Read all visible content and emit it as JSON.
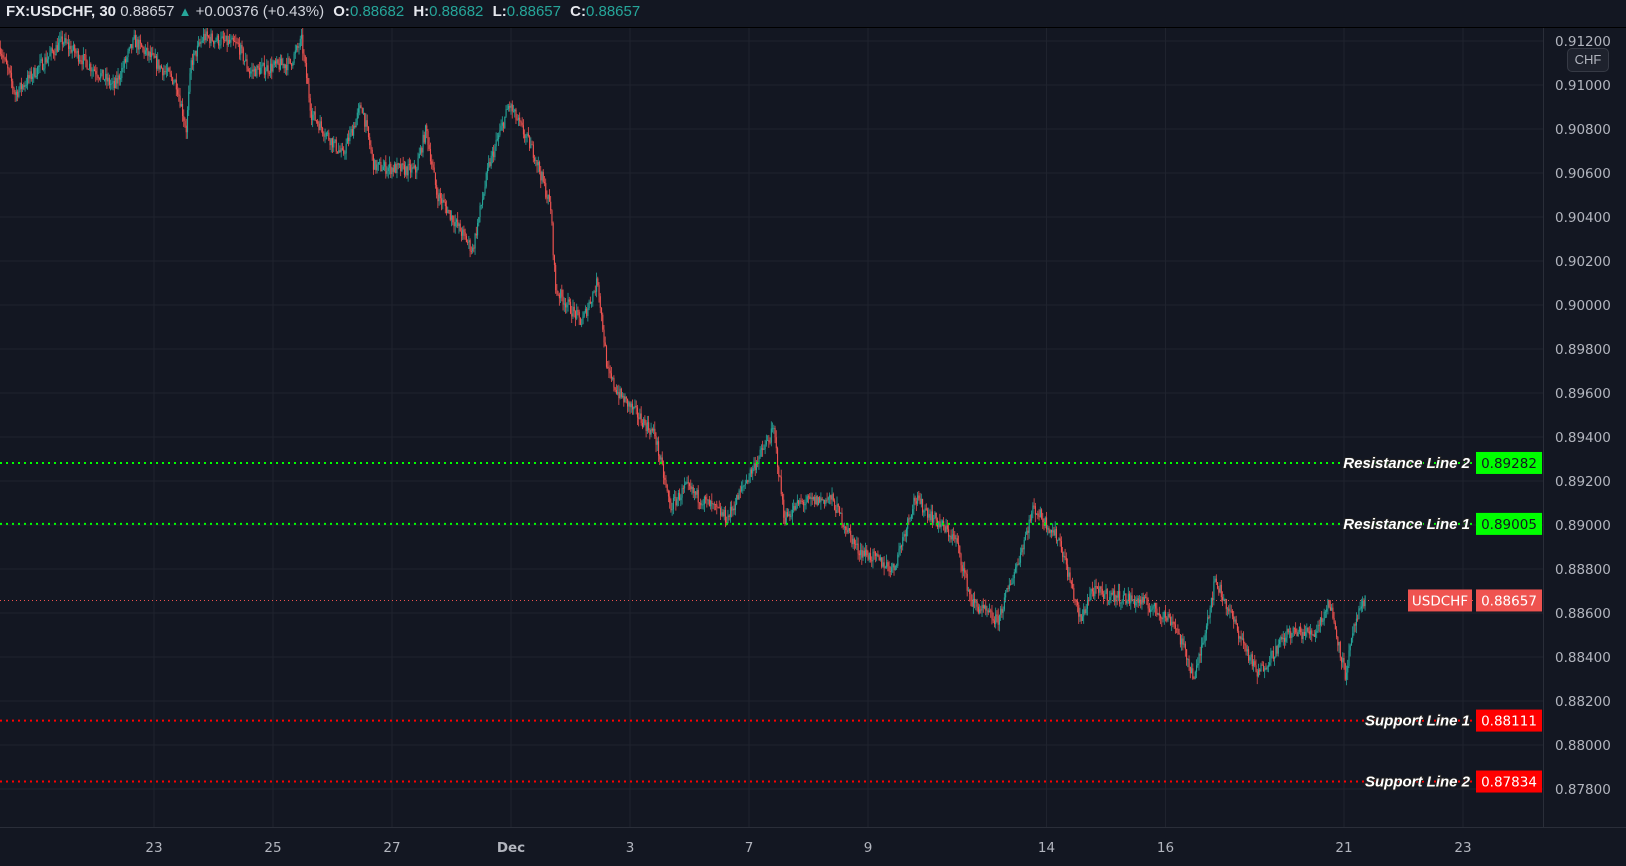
{
  "header": {
    "symbol": "FX:USDCHF, 30",
    "last": "0.88657",
    "change": "+0.00376 (+0.43%)",
    "change_icon": "triangle-up-icon",
    "o_label": "O:",
    "o": "0.88682",
    "h_label": "H:",
    "h": "0.88682",
    "l_label": "L:",
    "l": "0.88657",
    "c_label": "C:",
    "c": "0.88657"
  },
  "currency_button": "CHF",
  "colors": {
    "background": "#131722",
    "up": "#26a69a",
    "down": "#ef5350",
    "resistance": "#00ff00",
    "support": "#ff0000",
    "last_price": "#ef5350"
  },
  "chart_data": {
    "type": "candlestick",
    "interval": "30",
    "ylim": [
      0.8765,
      0.9132
    ],
    "grid": true,
    "y_ticks": [
      "0.87800",
      "0.88000",
      "0.88200",
      "0.88400",
      "0.88600",
      "0.88800",
      "0.89000",
      "0.89200",
      "0.89400",
      "0.89600",
      "0.89800",
      "0.90000",
      "0.90200",
      "0.90400",
      "0.90600",
      "0.90800",
      "0.91000",
      "0.91200"
    ],
    "x_ticks": [
      {
        "date": "2020-11-23",
        "label": "23"
      },
      {
        "date": "2020-11-25",
        "label": "25"
      },
      {
        "date": "2020-11-27",
        "label": "27"
      },
      {
        "date": "2020-12-01",
        "label": "Dec"
      },
      {
        "date": "2020-12-03",
        "label": "3"
      },
      {
        "date": "2020-12-07",
        "label": "7"
      },
      {
        "date": "2020-12-09",
        "label": "9"
      },
      {
        "date": "2020-12-14",
        "label": "14"
      },
      {
        "date": "2020-12-16",
        "label": "16"
      },
      {
        "date": "2020-12-21",
        "label": "21"
      },
      {
        "date": "2020-12-23",
        "label": "23"
      }
    ],
    "approx_price_path": [
      [
        "2020-11-18 10:00",
        0.9117
      ],
      [
        "2020-11-18 16:00",
        0.9096
      ],
      [
        "2020-11-19 11:00",
        0.912
      ],
      [
        "2020-11-20 08:00",
        0.9099
      ],
      [
        "2020-11-20 16:00",
        0.912
      ],
      [
        "2020-11-23 09:00",
        0.9101
      ],
      [
        "2020-11-23 13:00",
        0.908
      ],
      [
        "2020-11-23 15:00",
        0.911
      ],
      [
        "2020-11-23 20:00",
        0.9122
      ],
      [
        "2020-11-24 10:00",
        0.9118
      ],
      [
        "2020-11-24 14:30",
        0.9106
      ],
      [
        "2020-11-25 07:00",
        0.911
      ],
      [
        "2020-11-25 11:30",
        0.912
      ],
      [
        "2020-11-25 15:30",
        0.9087
      ],
      [
        "2020-11-26 04:00",
        0.9068
      ],
      [
        "2020-11-26 11:45",
        0.9091
      ],
      [
        "2020-11-26 16:45",
        0.9063
      ],
      [
        "2020-11-27 09:30",
        0.9061
      ],
      [
        "2020-11-27 13:45",
        0.908
      ],
      [
        "2020-11-27 18:00",
        0.9051
      ],
      [
        "2020-11-30 08:30",
        0.9025
      ],
      [
        "2020-11-30 15:00",
        0.9063
      ],
      [
        "2020-11-30 23:15",
        0.9091
      ],
      [
        "2020-12-01 09:45",
        0.9068
      ],
      [
        "2020-12-01 16:00",
        0.9044
      ],
      [
        "2020-12-01 18:00",
        0.9007
      ],
      [
        "2020-12-02 04:30",
        0.8992
      ],
      [
        "2020-12-02 11:00",
        0.9011
      ],
      [
        "2020-12-02 15:00",
        0.8969
      ],
      [
        "2020-12-02 19:15",
        0.896
      ],
      [
        "2020-12-03 10:00",
        0.8941
      ],
      [
        "2020-12-03 16:15",
        0.8908
      ],
      [
        "2020-12-03 22:30",
        0.8917
      ],
      [
        "2020-12-04 15:15",
        0.8903
      ],
      [
        "2020-12-04 23:40",
        0.8922
      ],
      [
        "2020-12-07 10:00",
        0.8943
      ],
      [
        "2020-12-07 14:15",
        0.8903
      ],
      [
        "2020-12-07 20:30",
        0.891
      ],
      [
        "2020-12-08 09:10",
        0.8912
      ],
      [
        "2020-12-08 19:40",
        0.8889
      ],
      [
        "2020-12-09 10:20",
        0.888
      ],
      [
        "2020-12-09 18:45",
        0.8912
      ],
      [
        "2020-12-10 11:30",
        0.8893
      ],
      [
        "2020-12-10 17:45",
        0.8865
      ],
      [
        "2020-12-11 04:10",
        0.8856
      ],
      [
        "2020-12-11 12:35",
        0.8884
      ],
      [
        "2020-12-11 18:50",
        0.8908
      ],
      [
        "2020-12-14 05:20",
        0.8893
      ],
      [
        "2020-12-14 13:45",
        0.8856
      ],
      [
        "2020-12-14 17:55",
        0.887
      ],
      [
        "2020-12-15 14:50",
        0.8865
      ],
      [
        "2020-12-16 03:25",
        0.8856
      ],
      [
        "2020-12-16 11:45",
        0.883
      ],
      [
        "2020-12-16 20:10",
        0.8875
      ],
      [
        "2020-12-17 13:00",
        0.8832
      ],
      [
        "2020-12-18 01:30",
        0.8851
      ],
      [
        "2020-12-18 12:00",
        0.8851
      ],
      [
        "2020-12-18 18:15",
        0.8865
      ],
      [
        "2020-12-21 00:30",
        0.8832
      ],
      [
        "2020-12-21 04:40",
        0.8856
      ],
      [
        "2020-12-21 08:50",
        0.88657
      ]
    ],
    "horizontal_lines": [
      {
        "name": "Resistance Line 2",
        "price": 0.89282,
        "value": "0.89282",
        "color": "#00ff00",
        "text_color": "#131722"
      },
      {
        "name": "Resistance Line 1",
        "price": 0.89005,
        "value": "0.89005",
        "color": "#00ff00",
        "text_color": "#131722"
      },
      {
        "name": "Support Line 1",
        "price": 0.88111,
        "value": "0.88111",
        "color": "#ff0000",
        "text_color": "#ffffff"
      },
      {
        "name": "Support Line 2",
        "price": 0.87834,
        "value": "0.87834",
        "color": "#ff0000",
        "text_color": "#ffffff"
      }
    ],
    "last_price": {
      "symbol": "USDCHF",
      "price": 0.88657,
      "value": "0.88657"
    }
  }
}
